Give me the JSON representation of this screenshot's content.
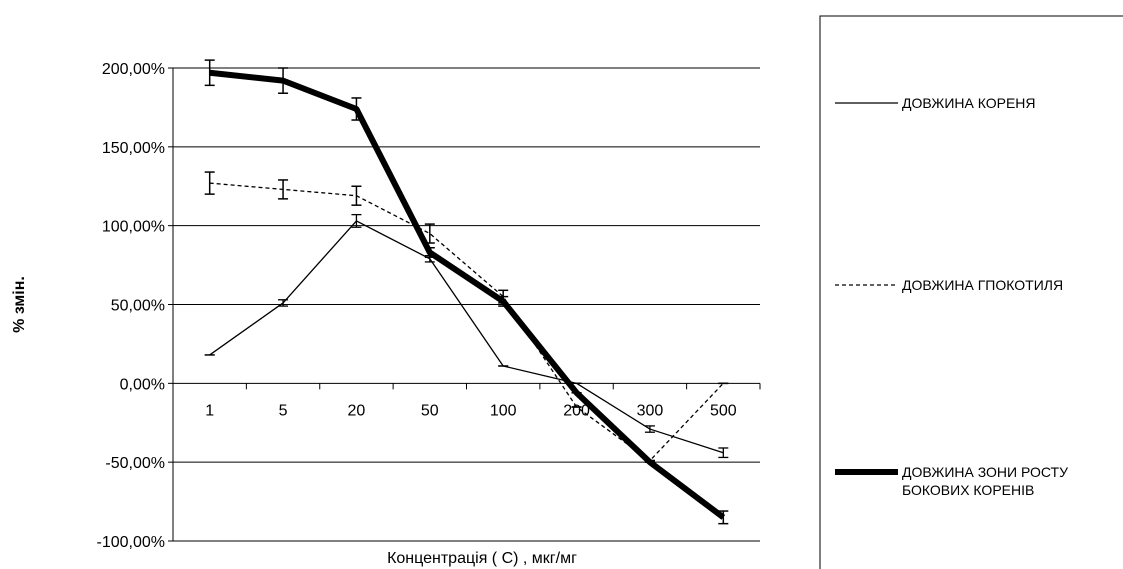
{
  "chart_data": {
    "type": "line",
    "categories": [
      "1",
      "5",
      "20",
      "50",
      "100",
      "200",
      "300",
      "500"
    ],
    "xlabel": "Концентрація   ( С)   , мкг/мг",
    "ylabel": "% змін.",
    "ylim": [
      -100,
      200
    ],
    "yticks": [
      "-100,00%",
      "-50,00%",
      "0,00%",
      "50,00%",
      "100,00%",
      "150,00%",
      "200,00%"
    ],
    "grid": true,
    "legend_position": "right",
    "series": [
      {
        "name": "ДОВЖИНА КОРЕНЯ",
        "style": "solid-thin",
        "values": [
          18,
          51,
          103,
          79,
          11,
          0,
          -29,
          -44
        ],
        "errors": [
          0,
          2,
          4,
          2,
          0,
          0,
          2,
          3
        ]
      },
      {
        "name": "ДОВЖИНА ГПОКОТИЛЯ",
        "style": "dashed",
        "values": [
          127,
          123,
          119,
          95,
          55,
          -15,
          -49,
          0
        ],
        "errors": [
          7,
          6,
          6,
          6,
          4,
          0,
          0,
          0
        ]
      },
      {
        "name": "ДОВЖИНА ЗОНИ РОСТУ БОКОВИХ КОРЕНІВ",
        "name_lines": [
          "ДОВЖИНА ЗОНИ РОСТУ",
          "БОКОВИХ КОРЕНІВ"
        ],
        "style": "solid-thick",
        "values": [
          197,
          192,
          174,
          83,
          52,
          -6,
          -50,
          -85
        ],
        "errors": [
          8,
          8,
          7,
          3,
          3,
          0,
          0,
          4
        ]
      }
    ]
  }
}
